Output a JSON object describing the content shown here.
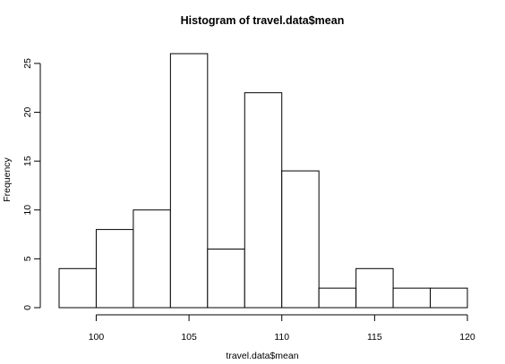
{
  "chart_data": {
    "type": "bar",
    "title": "Histogram of travel.data$mean",
    "xlabel": "travel.data$mean",
    "ylabel": "Frequency",
    "bins": [
      {
        "start": 98,
        "end": 100,
        "count": 4
      },
      {
        "start": 100,
        "end": 102,
        "count": 8
      },
      {
        "start": 102,
        "end": 104,
        "count": 10
      },
      {
        "start": 104,
        "end": 106,
        "count": 26
      },
      {
        "start": 106,
        "end": 108,
        "count": 6
      },
      {
        "start": 108,
        "end": 110,
        "count": 22
      },
      {
        "start": 110,
        "end": 112,
        "count": 14
      },
      {
        "start": 112,
        "end": 114,
        "count": 2
      },
      {
        "start": 114,
        "end": 116,
        "count": 4
      },
      {
        "start": 116,
        "end": 118,
        "count": 2
      },
      {
        "start": 118,
        "end": 120,
        "count": 2
      }
    ],
    "x_ticks": [
      100,
      105,
      110,
      115,
      120
    ],
    "y_ticks": [
      0,
      5,
      10,
      15,
      20,
      25
    ],
    "xlim": [
      98,
      120
    ],
    "ylim": [
      0,
      26
    ],
    "grid": false,
    "bar_fill": "#ffffff",
    "bar_stroke": "#000000"
  }
}
